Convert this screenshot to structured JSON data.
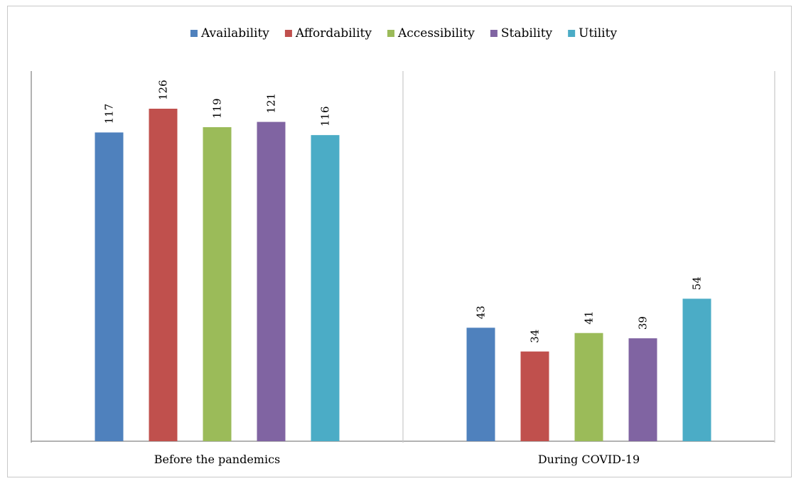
{
  "chart_data": {
    "type": "bar",
    "categories": [
      "Before the pandemics",
      "During COVID-19"
    ],
    "series": [
      {
        "name": "Availability",
        "values": [
          117,
          43
        ],
        "color": "#4F81BD"
      },
      {
        "name": "Affordability",
        "values": [
          126,
          34
        ],
        "color": "#C0504D"
      },
      {
        "name": "Accessibility",
        "values": [
          119,
          41
        ],
        "color": "#9BBB59"
      },
      {
        "name": "Stability",
        "values": [
          121,
          39
        ],
        "color": "#8064A2"
      },
      {
        "name": "Utility",
        "values": [
          116,
          54
        ],
        "color": "#4BACC6"
      }
    ],
    "ylim": [
      0,
      126
    ],
    "legend_position": "top",
    "grid": false,
    "data_labels": true,
    "data_label_rotation": "vertical"
  }
}
